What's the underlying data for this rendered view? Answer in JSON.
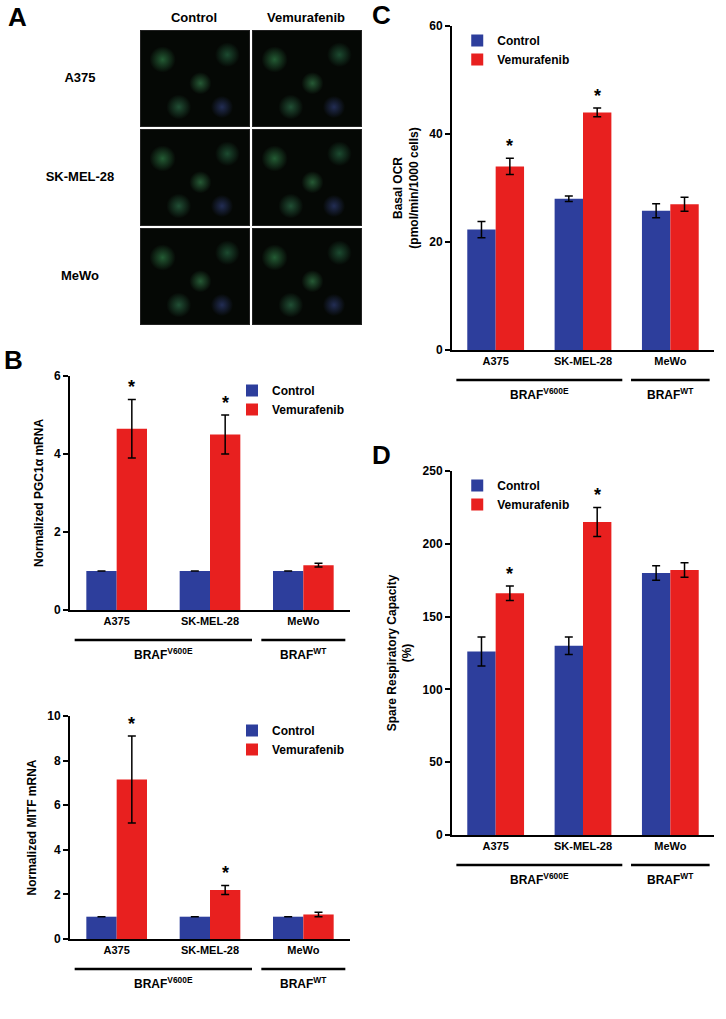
{
  "panel_a": {
    "panel_label": "A",
    "columns": [
      "Control",
      "Vemurafenib"
    ],
    "rows": [
      "A375",
      "SK-MEL-28",
      "MeWo"
    ]
  },
  "chart_data": [
    {
      "panel_label": "B",
      "type": "bar",
      "y_label": [
        "Normalized PGC1α mRNA"
      ],
      "categories": [
        "A375",
        "SK-MEL-28",
        "MeWo"
      ],
      "series": [
        {
          "name": "Control",
          "color": "#2d3e9c",
          "values": [
            1,
            1,
            1
          ],
          "errors": [
            0,
            0,
            0
          ]
        },
        {
          "name": "Vemurafenib",
          "color": "#e8201f",
          "values": [
            4.65,
            4.5,
            1.15
          ],
          "errors": [
            0.75,
            0.5,
            0.05
          ]
        }
      ],
      "ylim": [
        0,
        6
      ],
      "yticks": [
        0,
        2,
        4,
        6
      ],
      "legend": "top right",
      "grid": false,
      "annotations": [
        {
          "text": "*",
          "category": "A375",
          "series": "Vemurafenib"
        },
        {
          "text": "*",
          "category": "SK-MEL-28",
          "series": "Vemurafenib"
        }
      ],
      "groups": [
        {
          "label": "BRAF",
          "superscript": "V600E",
          "categories": [
            "A375",
            "SK-MEL-28"
          ]
        },
        {
          "label": "BRAF",
          "superscript": "WT",
          "categories": [
            "MeWo"
          ]
        }
      ]
    },
    {
      "type": "bar",
      "y_label": [
        "Normalized MITF mRNA"
      ],
      "categories": [
        "A375",
        "SK-MEL-28",
        "MeWo"
      ],
      "series": [
        {
          "name": "Control",
          "color": "#2d3e9c",
          "values": [
            1,
            1,
            1
          ],
          "errors": [
            0,
            0,
            0
          ]
        },
        {
          "name": "Vemurafenib",
          "color": "#e8201f",
          "values": [
            7.15,
            2.2,
            1.1
          ],
          "errors": [
            1.95,
            0.2,
            0.1
          ]
        }
      ],
      "ylim": [
        0,
        10
      ],
      "yticks": [
        0,
        2,
        4,
        6,
        8,
        10
      ],
      "legend": "top right",
      "grid": false,
      "annotations": [
        {
          "text": "*",
          "category": "A375",
          "series": "Vemurafenib"
        },
        {
          "text": "*",
          "category": "SK-MEL-28",
          "series": "Vemurafenib"
        }
      ],
      "groups": [
        {
          "label": "BRAF",
          "superscript": "V600E",
          "categories": [
            "A375",
            "SK-MEL-28"
          ]
        },
        {
          "label": "BRAF",
          "superscript": "WT",
          "categories": [
            "MeWo"
          ]
        }
      ]
    },
    {
      "panel_label": "C",
      "type": "bar",
      "y_label": [
        "Basal OCR",
        "(pmol/min/1000 cells)"
      ],
      "categories": [
        "A375",
        "SK-MEL-28",
        "MeWo"
      ],
      "series": [
        {
          "name": "Control",
          "color": "#2d3e9c",
          "values": [
            22.3,
            28,
            25.8
          ],
          "errors": [
            1.5,
            0.5,
            1.3
          ]
        },
        {
          "name": "Vemurafenib",
          "color": "#e8201f",
          "values": [
            34,
            44,
            27
          ],
          "errors": [
            1.5,
            0.8,
            1.3
          ]
        }
      ],
      "ylim": [
        0,
        60
      ],
      "yticks": [
        0,
        20,
        40,
        60
      ],
      "legend": "top left",
      "grid": false,
      "annotations": [
        {
          "text": "*",
          "category": "A375",
          "series": "Vemurafenib"
        },
        {
          "text": "*",
          "category": "SK-MEL-28",
          "series": "Vemurafenib"
        }
      ],
      "groups": [
        {
          "label": "BRAF",
          "superscript": "V600E",
          "categories": [
            "A375",
            "SK-MEL-28"
          ]
        },
        {
          "label": "BRAF",
          "superscript": "WT",
          "categories": [
            "MeWo"
          ]
        }
      ]
    },
    {
      "panel_label": "D",
      "type": "bar",
      "y_label": [
        "Spare Respiratory Capacity",
        "(%)"
      ],
      "categories": [
        "A375",
        "SK-MEL-28",
        "MeWo"
      ],
      "series": [
        {
          "name": "Control",
          "color": "#2d3e9c",
          "values": [
            126,
            130,
            180
          ],
          "errors": [
            10,
            6,
            5
          ]
        },
        {
          "name": "Vemurafenib",
          "color": "#e8201f",
          "values": [
            166,
            215,
            182
          ],
          "errors": [
            5,
            10,
            5
          ]
        }
      ],
      "ylim": [
        0,
        250
      ],
      "yticks": [
        0,
        50,
        100,
        150,
        200,
        250
      ],
      "legend": "top left",
      "grid": false,
      "annotations": [
        {
          "text": "*",
          "category": "A375",
          "series": "Vemurafenib"
        },
        {
          "text": "*",
          "category": "SK-MEL-28",
          "series": "Vemurafenib"
        }
      ],
      "groups": [
        {
          "label": "BRAF",
          "superscript": "V600E",
          "categories": [
            "A375",
            "SK-MEL-28"
          ]
        },
        {
          "label": "BRAF",
          "superscript": "WT",
          "categories": [
            "MeWo"
          ]
        }
      ]
    }
  ]
}
